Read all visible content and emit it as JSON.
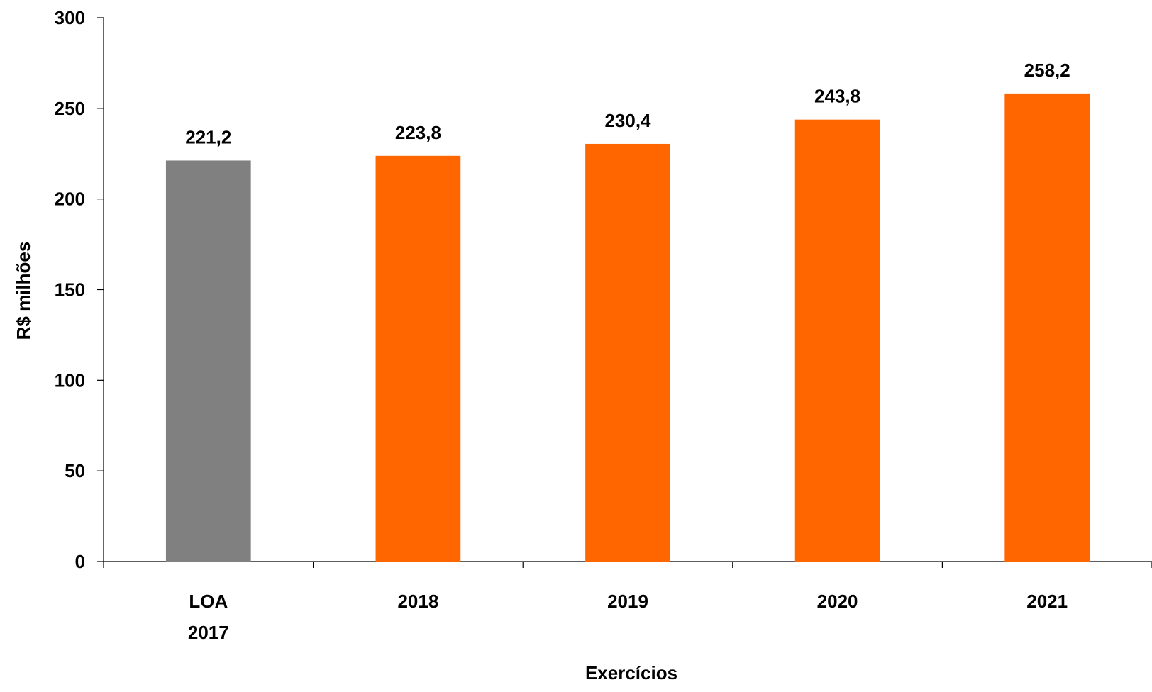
{
  "chart_data": {
    "type": "bar",
    "categories": [
      [
        "LOA",
        "2017"
      ],
      [
        "2018"
      ],
      [
        "2019"
      ],
      [
        "2020"
      ],
      [
        "2021"
      ]
    ],
    "values": [
      221.2,
      223.8,
      230.4,
      243.8,
      258.2
    ],
    "value_labels": [
      "221,2",
      "223,8",
      "230,4",
      "243,8",
      "258,2"
    ],
    "bar_colors": [
      "#808080",
      "#ff6600",
      "#ff6600",
      "#ff6600",
      "#ff6600"
    ],
    "xlabel": "Exercícios",
    "ylabel": "R$ milhões",
    "ylim": [
      0,
      300
    ],
    "yticks": [
      0,
      50,
      100,
      150,
      200,
      250,
      300
    ],
    "grid": false,
    "legend": "none"
  }
}
